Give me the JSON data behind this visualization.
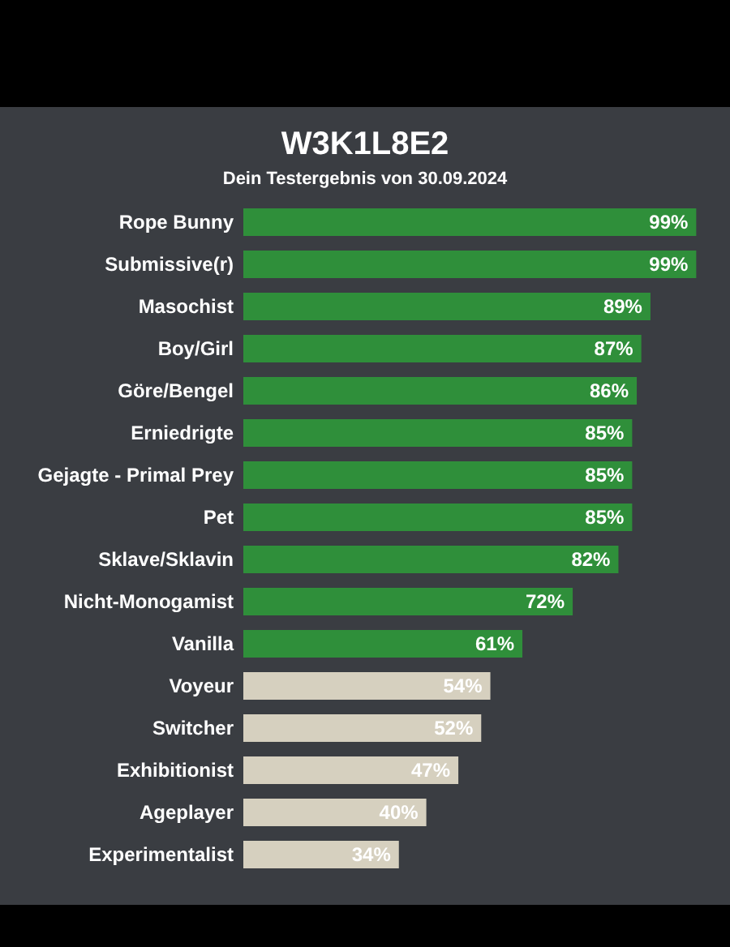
{
  "chart_data": {
    "type": "bar",
    "orientation": "horizontal",
    "title": "W3K1L8E2",
    "subtitle": "Dein Testergebnis von 30.09.2024",
    "categories": [
      "Rope Bunny",
      "Submissive(r)",
      "Masochist",
      "Boy/Girl",
      "Göre/Bengel",
      "Erniedrigte",
      "Gejagte - Primal Prey",
      "Pet",
      "Sklave/Sklavin",
      "Nicht-Monogamist",
      "Vanilla",
      "Voyeur",
      "Switcher",
      "Exhibitionist",
      "Ageplayer",
      "Experimentalist"
    ],
    "values": [
      99,
      99,
      89,
      87,
      86,
      85,
      85,
      85,
      82,
      72,
      61,
      54,
      52,
      47,
      40,
      34
    ],
    "value_labels": [
      "99%",
      "99%",
      "89%",
      "87%",
      "86%",
      "85%",
      "85%",
      "85%",
      "82%",
      "72%",
      "61%",
      "54%",
      "52%",
      "47%",
      "40%",
      "34%"
    ],
    "colors": [
      "#2f8f3a",
      "#2f8f3a",
      "#2f8f3a",
      "#2f8f3a",
      "#2f8f3a",
      "#2f8f3a",
      "#2f8f3a",
      "#2f8f3a",
      "#2f8f3a",
      "#2f8f3a",
      "#2f8f3a",
      "#d6d0bf",
      "#d6d0bf",
      "#d6d0bf",
      "#d6d0bf",
      "#d6d0bf"
    ]
  }
}
